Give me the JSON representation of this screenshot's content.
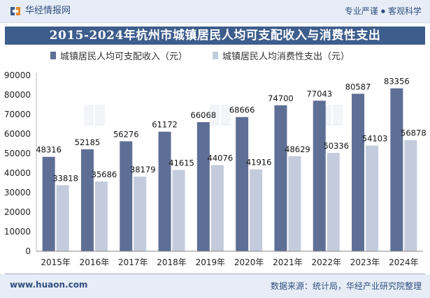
{
  "header": {
    "brand_name": "华经情报网",
    "tagline_left": "专业严谨",
    "tagline_separator": "●",
    "tagline_right": "客观科学"
  },
  "footer": {
    "url": "www.huaon.com",
    "source": "数据来源：统计局，华经产业研究院整理"
  },
  "colors": {
    "series1": "#5e6f96",
    "series2": "#c3cbdc",
    "title_band": "#3d5d8c",
    "header_bg": "#e7edf6"
  },
  "chart_data": {
    "type": "bar",
    "title": "2015-2024年杭州市城镇居民人均可支配收入与消费性支出",
    "categories": [
      "2015年",
      "2016年",
      "2017年",
      "2018年",
      "2019年",
      "2020年",
      "2021年",
      "2022年",
      "2023年",
      "2024年"
    ],
    "series": [
      {
        "name": "城镇居民人均可支配收入（元）",
        "values": [
          48316,
          52185,
          56276,
          61172,
          66068,
          68666,
          74700,
          77043,
          80587,
          83356
        ]
      },
      {
        "name": "城镇居民人均消费性支出（元）",
        "values": [
          33818,
          35686,
          38179,
          41615,
          44076,
          41916,
          48629,
          50336,
          54103,
          56878
        ]
      }
    ],
    "ylim": [
      0,
      90000
    ],
    "yticks": [
      0,
      10000,
      20000,
      30000,
      40000,
      50000,
      60000,
      70000,
      80000,
      90000
    ],
    "xlabel": "",
    "ylabel": "",
    "legend_position": "top-left",
    "grid": false
  }
}
